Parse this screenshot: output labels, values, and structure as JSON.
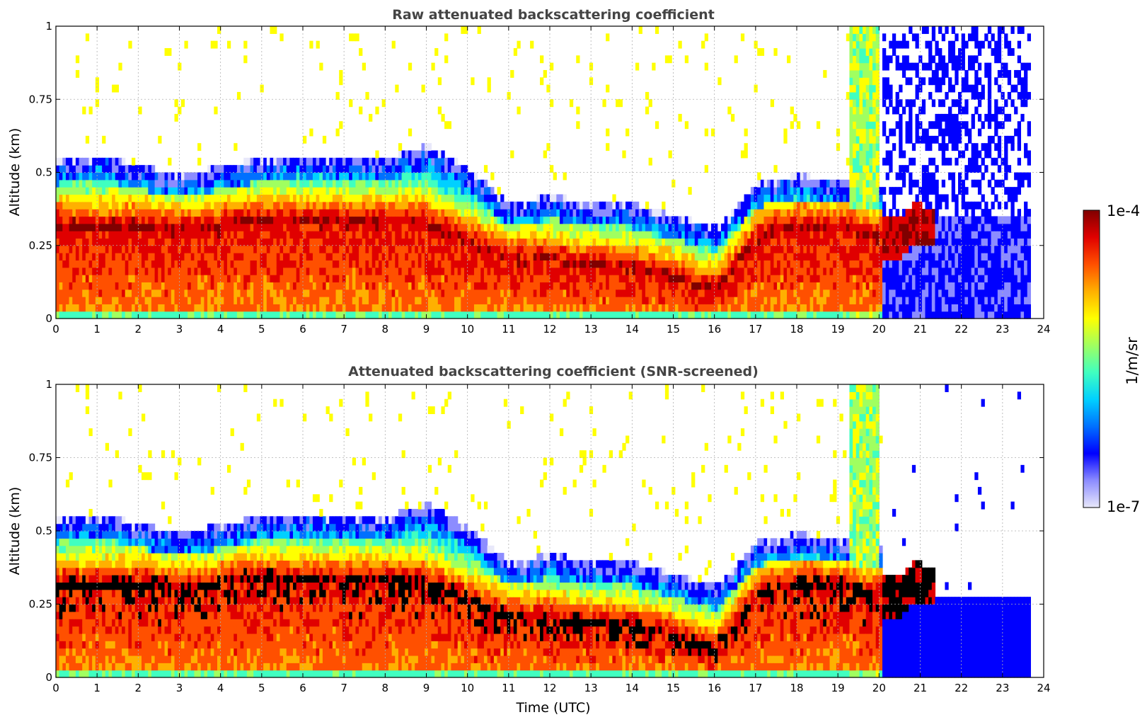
{
  "chart_data": [
    {
      "type": "heatmap",
      "title": "Raw attenuated backscattering coefficient",
      "xlabel": "",
      "ylabel": "Altitude (km)",
      "xlim": [
        0,
        24
      ],
      "ylim": [
        0,
        1
      ],
      "xticks": [
        "0",
        "1",
        "2",
        "3",
        "4",
        "5",
        "6",
        "7",
        "8",
        "9",
        "10",
        "11",
        "12",
        "13",
        "14",
        "15",
        "16",
        "17",
        "18",
        "19",
        "20",
        "21",
        "22",
        "23",
        "24"
      ],
      "yticks": [
        "0",
        "0.25",
        "0.5",
        "0.75",
        "1"
      ],
      "grid": true,
      "data_end_time": 23.65,
      "layer_top_km": [
        [
          0,
          0.45
        ],
        [
          1,
          0.47
        ],
        [
          2,
          0.43
        ],
        [
          3,
          0.4
        ],
        [
          4,
          0.43
        ],
        [
          5,
          0.46
        ],
        [
          6,
          0.47
        ],
        [
          7,
          0.46
        ],
        [
          8,
          0.46
        ],
        [
          9,
          0.5
        ],
        [
          10,
          0.42
        ],
        [
          11,
          0.3
        ],
        [
          12,
          0.33
        ],
        [
          13,
          0.3
        ],
        [
          14,
          0.3
        ],
        [
          15,
          0.26
        ],
        [
          16,
          0.22
        ],
        [
          17,
          0.37
        ],
        [
          18,
          0.4
        ],
        [
          19,
          0.38
        ],
        [
          19.9,
          0.36
        ],
        [
          20.4,
          0.36
        ],
        [
          20.8,
          0.4
        ],
        [
          21.2,
          0.38
        ]
      ],
      "peak_altitude_km": [
        [
          0,
          0.3
        ],
        [
          1,
          0.3
        ],
        [
          2,
          0.3
        ],
        [
          3,
          0.28
        ],
        [
          4,
          0.3
        ],
        [
          5,
          0.32
        ],
        [
          6,
          0.31
        ],
        [
          7,
          0.31
        ],
        [
          8,
          0.31
        ],
        [
          9,
          0.3
        ],
        [
          10,
          0.24
        ],
        [
          11,
          0.18
        ],
        [
          12,
          0.18
        ],
        [
          13,
          0.16
        ],
        [
          14,
          0.15
        ],
        [
          15,
          0.12
        ],
        [
          16,
          0.07
        ],
        [
          17,
          0.26
        ],
        [
          18,
          0.3
        ],
        [
          19,
          0.29
        ],
        [
          19.9,
          0.26
        ],
        [
          20.4,
          0.26
        ],
        [
          20.8,
          0.31
        ],
        [
          21.2,
          0.3
        ]
      ]
    },
    {
      "type": "heatmap",
      "title": "Attenuated backscattering coefficient (SNR-screened)",
      "xlabel": "Time (UTC)",
      "ylabel": "Altitude (km)",
      "xlim": [
        0,
        24
      ],
      "ylim": [
        0,
        1
      ],
      "xticks": [
        "0",
        "1",
        "2",
        "3",
        "4",
        "5",
        "6",
        "7",
        "8",
        "9",
        "10",
        "11",
        "12",
        "13",
        "14",
        "15",
        "16",
        "17",
        "18",
        "19",
        "20",
        "21",
        "22",
        "23",
        "24"
      ],
      "yticks": [
        "0",
        "0.25",
        "0.5",
        "0.75",
        "1"
      ],
      "grid": true,
      "data_end_time": 23.65,
      "saturated_color": "#000000"
    }
  ],
  "colorbar": {
    "label": "1/m/sr",
    "max_label": "1e-4",
    "min_label": "1e-7",
    "colors": [
      "#e8e8fa",
      "#8c8cff",
      "#0000ff",
      "#0070ff",
      "#00d0ff",
      "#40ffc0",
      "#a0ff60",
      "#ffff00",
      "#ffb000",
      "#ff5000",
      "#e00000",
      "#800000"
    ]
  }
}
